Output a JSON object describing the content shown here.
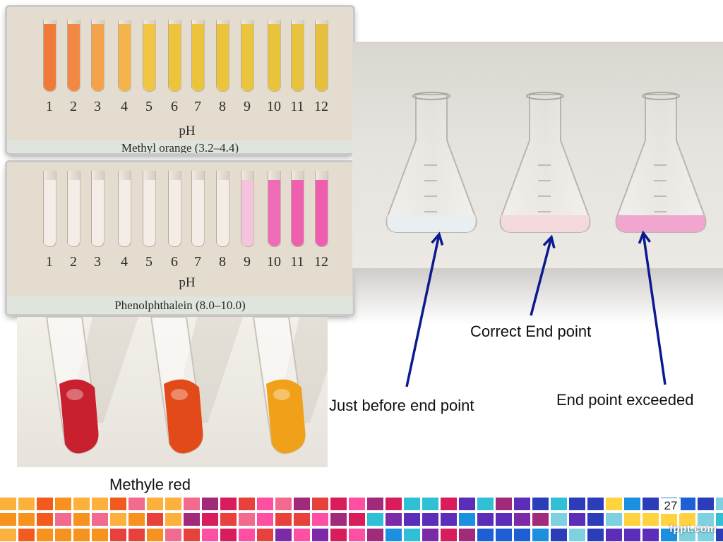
{
  "methyl_orange": {
    "ticks": [
      "1",
      "2",
      "3",
      "4",
      "5",
      "6",
      "7",
      "8",
      "9",
      "10",
      "11",
      "12"
    ],
    "axis_label": "pH",
    "caption": "Methyl orange (3.2–4.4)",
    "colors": [
      "#f07a3a",
      "#f38845",
      "#f4a24a",
      "#f5b44b",
      "#f1c544",
      "#eec33c",
      "#ecc43b",
      "#ebc43b",
      "#eac43c",
      "#e9c33c",
      "#e8c23c",
      "#e6c03c"
    ]
  },
  "phenolphthalein": {
    "ticks": [
      "1",
      "2",
      "3",
      "4",
      "5",
      "6",
      "7",
      "8",
      "9",
      "10",
      "11",
      "12"
    ],
    "axis_label": "pH",
    "caption": "Phenolphthalein (8.0–10.0)",
    "colors": [
      "#f4ece6",
      "#f4ece6",
      "#f4ece6",
      "#f4ece6",
      "#f4ece6",
      "#f4ece6",
      "#f4ece6",
      "#f4ece6",
      "#f5c4dc",
      "#f06bb6",
      "#ef5fb0",
      "#ee5dae"
    ]
  },
  "methyl_red": {
    "label": "Methyle red",
    "tube_colors": [
      "#c8202e",
      "#e24a1a",
      "#f0a019"
    ]
  },
  "flasks": {
    "liquid_colors": [
      "#e9eef0",
      "#f4d9dc",
      "#f0a6cf"
    ]
  },
  "labels": {
    "correct": "Correct End point",
    "just_before": "Just before end point",
    "exceeded": "End point exceeded"
  },
  "arrow_color": "#0b1a8f",
  "footer": {
    "page_number": "27",
    "brand": "fppt.com"
  }
}
